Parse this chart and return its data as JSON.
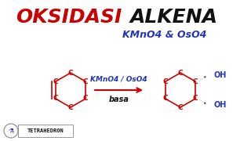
{
  "title_oksidasi": "OKSIDASI",
  "title_alkena": "ALKENA",
  "subtitle": "KMnO4 & OsO4",
  "reagent_line1": "KMnO4 / OsO4",
  "reagent_line2": "basa",
  "bg_color": "#ffffff",
  "red": "#cc0000",
  "blue": "#2222bb",
  "dark_blue": "#2233bb",
  "black": "#111111",
  "logo_text": "TETRAHEDRON",
  "title_fs": 18,
  "subtitle_fs": 9,
  "c_fs": 6.5,
  "reagent_fs": 6.5,
  "oh_fs": 7,
  "logo_fs": 5
}
